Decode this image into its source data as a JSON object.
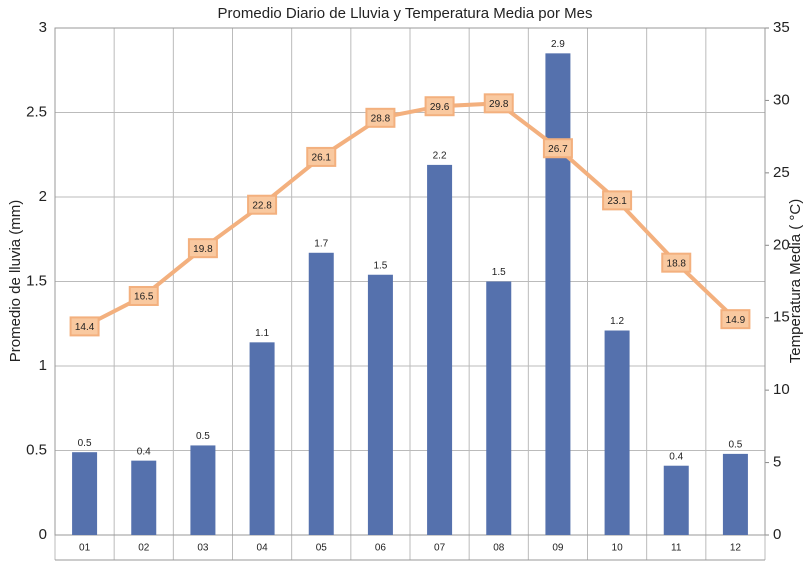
{
  "chart_data": {
    "type": "bar_line",
    "title": "Promedio Diario de Lluvia y Temperatura Media por Mes",
    "ylabel": "Promedio de lluvia (mm)",
    "y2label": "Temperatura Media ( °C)",
    "categories": [
      "01",
      "02",
      "03",
      "04",
      "05",
      "06",
      "07",
      "08",
      "09",
      "10",
      "11",
      "12"
    ],
    "series": [
      {
        "type": "bar",
        "color": "#5571ad",
        "values": [
          0.49,
          0.44,
          0.53,
          1.14,
          1.67,
          1.54,
          2.19,
          1.5,
          2.85,
          1.21,
          0.41,
          0.48
        ],
        "value_labels": [
          "0.5",
          "0.4",
          "0.5",
          "1.1",
          "1.7",
          "1.5",
          "2.2",
          "1.5",
          "2.9",
          "1.2",
          "0.4",
          "0.5"
        ]
      },
      {
        "type": "line",
        "axis": "y2",
        "color": "#f3b07e",
        "values": [
          14.4,
          16.5,
          19.8,
          22.8,
          26.1,
          28.8,
          29.6,
          29.8,
          26.7,
          23.1,
          18.8,
          14.9
        ]
      }
    ],
    "ylim": [
      0,
      3
    ],
    "yticks": [
      0,
      0.5,
      1,
      1.5,
      2,
      2.5,
      3
    ],
    "y2lim": [
      0,
      35
    ],
    "y2ticks": [
      0,
      5,
      10,
      15,
      20,
      25,
      30,
      35
    ],
    "grid": true
  }
}
